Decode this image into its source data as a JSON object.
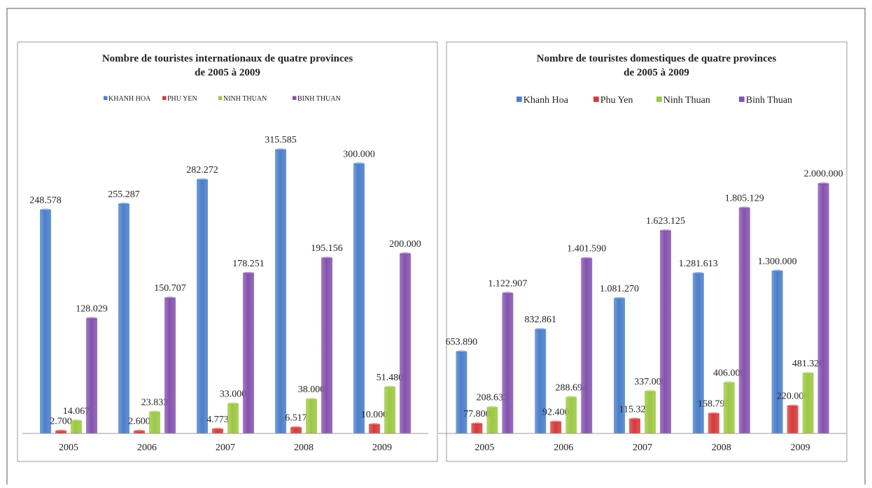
{
  "chart_data": [
    {
      "type": "bar",
      "title": [
        "Nombre de touristes internationaux  de quatre provinces",
        "de 2005 à 2009"
      ],
      "categories": [
        "2005",
        "2006",
        "2007",
        "2008",
        "2009"
      ],
      "series": [
        {
          "name": "KHANH HOA",
          "color": "#4a7fca",
          "values": [
            248578,
            255287,
            282272,
            315585,
            300000
          ],
          "value_labels": [
            "248.578",
            "255.287",
            "282.272",
            "315.585",
            "300.000"
          ]
        },
        {
          "name": "PHU YEN",
          "color": "#d63a3a",
          "values": [
            2700,
            2600,
            4773,
            6517,
            10000
          ],
          "value_labels": [
            "2.700",
            "2.600",
            "4.773",
            "6.517",
            "10.000"
          ]
        },
        {
          "name": "NINH THUAN",
          "color": "#9cc843",
          "values": [
            14067,
            23833,
            33000,
            38000,
            51480
          ],
          "value_labels": [
            "14.067",
            "23.833",
            "33.000",
            "38.000",
            "51.480"
          ]
        },
        {
          "name": "BINH THUAN",
          "color": "#8452ae",
          "values": [
            128029,
            150707,
            178251,
            195156,
            200000
          ],
          "value_labels": [
            "128.029",
            "150.707",
            "178.251",
            "195.156",
            "200.000"
          ]
        }
      ],
      "ylim": [
        0,
        350000
      ]
    },
    {
      "type": "bar",
      "title": [
        "Nombre de touristes domestiques de quatre provinces",
        "de 2005 à 2009"
      ],
      "categories": [
        "2005",
        "2006",
        "2007",
        "2008",
        "2009"
      ],
      "series": [
        {
          "name": "Khanh Hoa",
          "color": "#4a7fca",
          "values": [
            653890,
            832861,
            1081270,
            1281613,
            1300000
          ],
          "value_labels": [
            "653.890",
            "832.861",
            "1.081.270",
            "1.281.613",
            "1.300.000"
          ]
        },
        {
          "name": "Phu Yen",
          "color": "#d63a3a",
          "values": [
            77800,
            92400,
            115327,
            158795,
            220000
          ],
          "value_labels": [
            "77.800",
            "92.400",
            "115.327",
            "158.795",
            "220.000"
          ]
        },
        {
          "name": "Ninh Thuan",
          "color": "#9cc843",
          "values": [
            208633,
            288694,
            337000,
            406000,
            481320
          ],
          "value_labels": [
            "208.633",
            "288.694",
            "337.000",
            "406.000",
            "481.320"
          ]
        },
        {
          "name": "Binh Thuan",
          "color": "#8452ae",
          "values": [
            1122907,
            1401590,
            1623125,
            1805129,
            2000000
          ],
          "value_labels": [
            "1.122.907",
            "1.401.590",
            "1.623.125",
            "1.805.129",
            "2.000.000"
          ]
        }
      ],
      "ylim": [
        0,
        2200000
      ]
    }
  ]
}
